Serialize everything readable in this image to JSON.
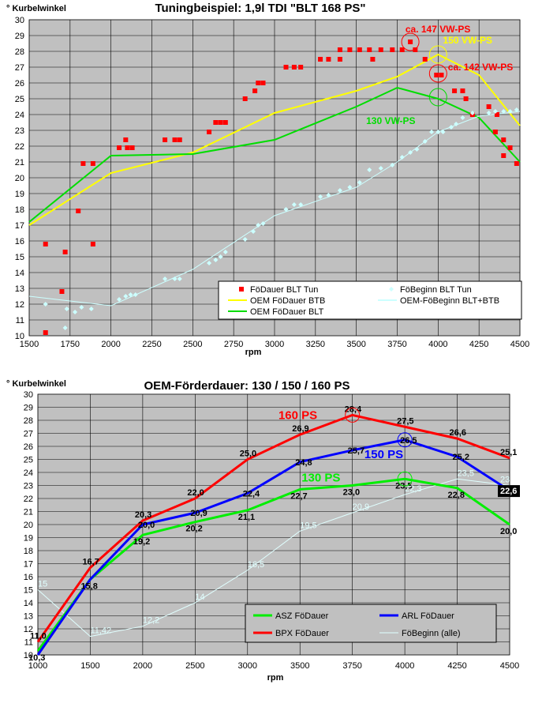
{
  "chart_data": [
    {
      "type": "scatter",
      "title": "Tuningbeispiel: 1,9l TDI \"BLT 168 PS\"",
      "ylabel": "° Kurbelwinkel",
      "xlabel": "rpm",
      "xlim": [
        1500,
        4500
      ],
      "ylim": [
        10,
        30
      ],
      "xticks": [
        "1500",
        "1750",
        "2000",
        "2250",
        "2500",
        "2750",
        "3000",
        "3250",
        "3500",
        "3750",
        "4000",
        "4250",
        "4500"
      ],
      "yticks": [
        "10",
        "11",
        "12",
        "13",
        "14",
        "15",
        "16",
        "17",
        "18",
        "19",
        "20",
        "21",
        "22",
        "23",
        "24",
        "25",
        "26",
        "27",
        "28",
        "29",
        "30"
      ],
      "grid": true,
      "legend_position": "bottom-right",
      "colors": {
        "plot_bg": "#c0c0c0",
        "foedauer_tun": "#ff0000",
        "oem_btb": "#ffff00",
        "oem_blt": "#00dd00",
        "foebeginn_tun": "#ccffff",
        "oem_foebeginn": "#ccffff"
      },
      "series": [
        {
          "name": "FöDauer BLT Tun",
          "kind": "marker-square",
          "points": [
            [
              1600,
              15.8
            ],
            [
              1600,
              10.2
            ],
            [
              1700,
              12.8
            ],
            [
              1720,
              15.3
            ],
            [
              1800,
              17.9
            ],
            [
              1830,
              20.9
            ],
            [
              1890,
              20.9
            ],
            [
              1890,
              15.8
            ],
            [
              2050,
              21.9
            ],
            [
              2090,
              22.4
            ],
            [
              2100,
              21.9
            ],
            [
              2130,
              21.9
            ],
            [
              2330,
              22.4
            ],
            [
              2390,
              22.4
            ],
            [
              2420,
              22.4
            ],
            [
              2600,
              22.9
            ],
            [
              2640,
              23.5
            ],
            [
              2670,
              23.5
            ],
            [
              2700,
              23.5
            ],
            [
              2820,
              25.0
            ],
            [
              2880,
              25.5
            ],
            [
              2900,
              26.0
            ],
            [
              2930,
              26.0
            ],
            [
              3070,
              27.0
            ],
            [
              3120,
              27.0
            ],
            [
              3160,
              27.0
            ],
            [
              3280,
              27.5
            ],
            [
              3330,
              27.5
            ],
            [
              3400,
              27.5
            ],
            [
              3400,
              28.1
            ],
            [
              3460,
              28.1
            ],
            [
              3520,
              28.1
            ],
            [
              3580,
              28.1
            ],
            [
              3600,
              27.5
            ],
            [
              3650,
              28.1
            ],
            [
              3720,
              28.1
            ],
            [
              3780,
              28.1
            ],
            [
              3830,
              28.6
            ],
            [
              3860,
              28.1
            ],
            [
              3920,
              27.5
            ],
            [
              3990,
              26.5
            ],
            [
              4020,
              26.5
            ],
            [
              4100,
              25.5
            ],
            [
              4150,
              25.5
            ],
            [
              4170,
              25.0
            ],
            [
              4210,
              24.0
            ],
            [
              4310,
              24.5
            ],
            [
              4350,
              22.9
            ],
            [
              4360,
              24.0
            ],
            [
              4400,
              22.4
            ],
            [
              4400,
              21.4
            ],
            [
              4440,
              21.9
            ],
            [
              4480,
              20.9
            ]
          ]
        },
        {
          "name": "OEM FöDauer BTB",
          "kind": "line",
          "points": [
            [
              1500,
              17.0
            ],
            [
              2000,
              20.3
            ],
            [
              2500,
              21.6
            ],
            [
              3000,
              24.1
            ],
            [
              3500,
              25.5
            ],
            [
              3750,
              26.4
            ],
            [
              4000,
              27.8
            ],
            [
              4250,
              26.5
            ],
            [
              4500,
              23.3
            ]
          ]
        },
        {
          "name": "FöBeginn BLT Tun",
          "kind": "marker-diamond",
          "points": [
            [
              1600,
              12.0
            ],
            [
              1720,
              10.5
            ],
            [
              1730,
              11.7
            ],
            [
              1780,
              11.5
            ],
            [
              1820,
              11.8
            ],
            [
              1880,
              11.7
            ],
            [
              2050,
              12.3
            ],
            [
              2090,
              12.5
            ],
            [
              2120,
              12.6
            ],
            [
              2150,
              12.6
            ],
            [
              2330,
              13.6
            ],
            [
              2390,
              13.6
            ],
            [
              2420,
              13.6
            ],
            [
              2600,
              14.6
            ],
            [
              2640,
              14.8
            ],
            [
              2670,
              15.0
            ],
            [
              2700,
              15.3
            ],
            [
              2820,
              16.1
            ],
            [
              2870,
              16.6
            ],
            [
              2900,
              17.0
            ],
            [
              2930,
              17.1
            ],
            [
              3070,
              18.0
            ],
            [
              3120,
              18.3
            ],
            [
              3160,
              18.3
            ],
            [
              3280,
              18.8
            ],
            [
              3330,
              18.9
            ],
            [
              3400,
              19.2
            ],
            [
              3460,
              19.4
            ],
            [
              3520,
              19.7
            ],
            [
              3580,
              20.5
            ],
            [
              3650,
              20.6
            ],
            [
              3720,
              20.8
            ],
            [
              3780,
              21.3
            ],
            [
              3830,
              21.6
            ],
            [
              3870,
              21.8
            ],
            [
              3920,
              22.3
            ],
            [
              3960,
              22.9
            ],
            [
              4000,
              22.9
            ],
            [
              4030,
              22.9
            ],
            [
              4080,
              23.2
            ],
            [
              4110,
              23.4
            ],
            [
              4150,
              23.8
            ],
            [
              4210,
              24.1
            ],
            [
              4310,
              24.1
            ],
            [
              4350,
              24.2
            ],
            [
              4400,
              24.2
            ],
            [
              4440,
              24.2
            ],
            [
              4480,
              24.3
            ]
          ]
        },
        {
          "name": "OEM FöDauer BLT",
          "kind": "line",
          "points": [
            [
              1500,
              17.2
            ],
            [
              2000,
              21.4
            ],
            [
              2500,
              21.5
            ],
            [
              3000,
              22.4
            ],
            [
              3500,
              24.5
            ],
            [
              3750,
              25.7
            ],
            [
              4000,
              25.0
            ],
            [
              4250,
              23.8
            ],
            [
              4500,
              21.0
            ]
          ]
        },
        {
          "name": "OEM-FöBeginn BLT+BTB",
          "kind": "line",
          "points": [
            [
              1500,
              12.5
            ],
            [
              2000,
              11.9
            ],
            [
              2500,
              14.2
            ],
            [
              3000,
              17.6
            ],
            [
              3500,
              19.4
            ],
            [
              3750,
              21.0
            ],
            [
              4000,
              22.9
            ],
            [
              4250,
              23.9
            ],
            [
              4500,
              24.2
            ]
          ]
        }
      ],
      "annotations": [
        {
          "text": "ca. 147 VW-PS",
          "color": "#ff0000",
          "x": 3800,
          "y": 29.2
        },
        {
          "text": "150 VW-PS",
          "color": "#ffff00",
          "x": 4030,
          "y": 28.5
        },
        {
          "text": "ca. 142 VW-PS",
          "color": "#ff0000",
          "x": 4060,
          "y": 26.8
        },
        {
          "text": "130 VW-PS",
          "color": "#00dd00",
          "x": 3560,
          "y": 23.4
        }
      ]
    },
    {
      "type": "line",
      "title": "OEM-Förderdauer: 130 / 150 / 160 PS",
      "ylabel": "° Kurbelwinkel",
      "xlabel": "rpm",
      "xlim": [
        1000,
        4500
      ],
      "ylim": [
        10,
        30
      ],
      "categories": [
        "1000",
        "1500",
        "2000",
        "2500",
        "3000",
        "3500",
        "3750",
        "4000",
        "4250",
        "4500"
      ],
      "xticks": [
        "1000",
        "1500",
        "2000",
        "2500",
        "3000",
        "3500",
        "3750",
        "4000",
        "4250",
        "4500"
      ],
      "yticks": [
        "10",
        "11",
        "12",
        "13",
        "14",
        "15",
        "16",
        "17",
        "18",
        "19",
        "20",
        "21",
        "22",
        "23",
        "24",
        "25",
        "26",
        "27",
        "28",
        "29",
        "30"
      ],
      "grid": true,
      "legend_position": "bottom-right",
      "colors": {
        "plot_bg": "#c0c0c0",
        "asz": "#00ee00",
        "arl": "#0000ff",
        "bpx": "#ff0000",
        "foebeginn": "#e0ffff"
      },
      "series": [
        {
          "name": "ASZ FöDauer",
          "values": [
            10.3,
            15.8,
            19.2,
            20.2,
            21.1,
            22.7,
            23.0,
            23.5,
            22.8,
            20.0
          ],
          "labels": [
            "10,3",
            "15,8",
            "19,2",
            "20,2",
            "21,1",
            "22,7",
            "23,0",
            "23,5",
            "22,8",
            "20,0"
          ]
        },
        {
          "name": "ARL FöDauer",
          "values": [
            10.0,
            15.8,
            20.0,
            20.9,
            22.4,
            24.8,
            25.7,
            26.5,
            25.2,
            22.6
          ],
          "labels": [
            "",
            "",
            "20,0",
            "20,9",
            "22,4",
            "24,8",
            "25,7",
            "26,5",
            "25,2",
            "22,6"
          ]
        },
        {
          "name": "BPX FöDauer",
          "values": [
            11.0,
            16.7,
            20.3,
            22.0,
            25.0,
            26.9,
            28.4,
            27.5,
            26.6,
            25.1
          ],
          "labels": [
            "11,0",
            "16,7",
            "20,3",
            "22,0",
            "25,0",
            "26,9",
            "28,4",
            "27,5",
            "26,6",
            "25,1"
          ]
        },
        {
          "name": "FöBeginn (alle)",
          "values": [
            15.0,
            11.42,
            12.2,
            14.0,
            16.5,
            19.5,
            20.9,
            22.3,
            23.5,
            23.0
          ],
          "labels": [
            "15",
            "11,42",
            "12,2",
            "14",
            "16,5",
            "19,5",
            "20,9",
            "22,3",
            "23,5",
            "23"
          ]
        }
      ],
      "annotations": [
        {
          "text": "160 PS",
          "color": "#ff0000",
          "x": 3480,
          "y": 28.4
        },
        {
          "text": "150 PS",
          "color": "#0000ff",
          "x": 3900,
          "y": 25.4
        },
        {
          "text": "130 PS",
          "color": "#00ee00",
          "x": 3600,
          "y": 23.6
        }
      ]
    }
  ]
}
